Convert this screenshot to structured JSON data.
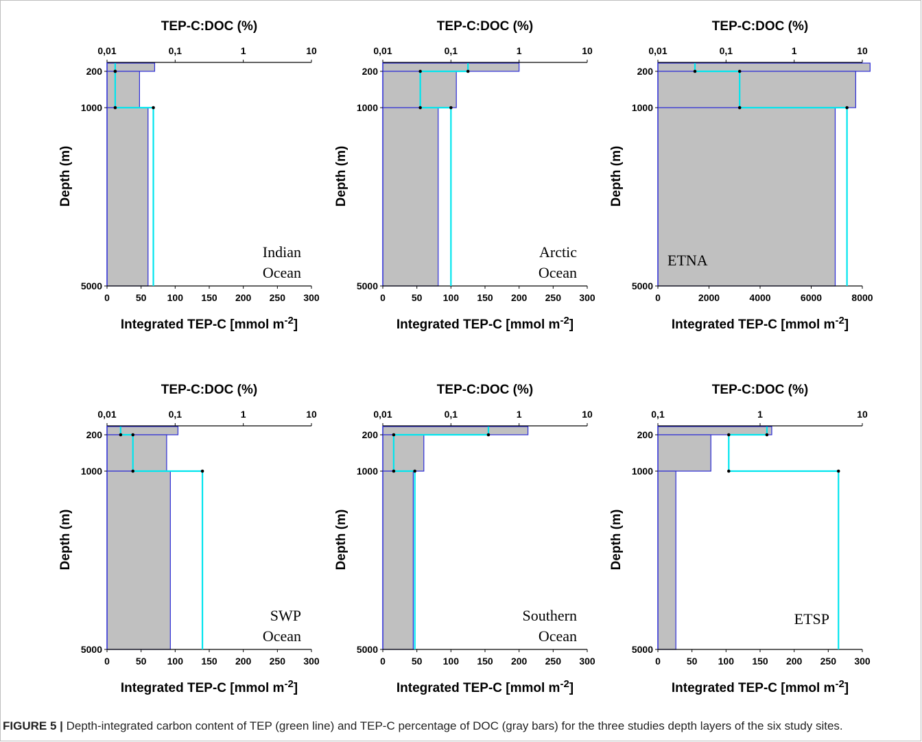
{
  "caption": {
    "label": "FIGURE 5 |",
    "text": " Depth-integrated carbon content of TEP (green line) and TEP-C percentage of DOC (gray bars) for the three studies depth layers of the six study sites."
  },
  "colors": {
    "bar_fill": "#c0c0c0",
    "bar_stroke": "#2b2bd6",
    "line": "#00e5ee",
    "marker": "#000000"
  },
  "chart_data": [
    {
      "type": "bar",
      "site_label": [
        "Indian",
        "Ocean"
      ],
      "top_axis_label": "TEP-C:DOC (%)",
      "top_ticks": [
        "0,01",
        "0,1",
        "1",
        "10"
      ],
      "top_scale": "log",
      "top_range": [
        0.01,
        10
      ],
      "ylabel": "Depth (m)",
      "y_ticks": [
        "200",
        "1000",
        "5000"
      ],
      "xlabel": "Integrated TEP-C [mmol m-2]",
      "x_ticks": [
        "0",
        "50",
        "100",
        "150",
        "200",
        "250",
        "300"
      ],
      "x_range": [
        0,
        300
      ],
      "layers": [
        "0-200",
        "200-1000",
        "1000-5000"
      ],
      "tep_c_doc_pct": [
        0.05,
        0.03,
        0.04
      ],
      "integrated_tep_c": [
        12,
        12,
        68
      ]
    },
    {
      "type": "bar",
      "site_label": [
        "Arctic",
        "Ocean"
      ],
      "top_axis_label": "TEP-C:DOC (%)",
      "top_ticks": [
        "0,01",
        "0,1",
        "1",
        "10"
      ],
      "top_scale": "log",
      "top_range": [
        0.01,
        10
      ],
      "ylabel": "Depth (m)",
      "y_ticks": [
        "200",
        "1000",
        "5000"
      ],
      "xlabel": "Integrated TEP-C [mmol m-2]",
      "x_ticks": [
        "0",
        "50",
        "100",
        "150",
        "200",
        "250",
        "300"
      ],
      "x_range": [
        0,
        300
      ],
      "layers": [
        "0-200",
        "200-1000",
        "1000-5000"
      ],
      "tep_c_doc_pct": [
        1.0,
        0.12,
        0.065
      ],
      "integrated_tep_c": [
        125,
        55,
        100
      ]
    },
    {
      "type": "bar",
      "site_label": [
        "ETNA"
      ],
      "top_axis_label": "TEP-C:DOC (%)",
      "top_ticks": [
        "0,01",
        "0,1",
        "1",
        "10"
      ],
      "top_scale": "log",
      "top_range": [
        0.01,
        10
      ],
      "ylabel": "Depth (m)",
      "y_ticks": [
        "200",
        "1000",
        "5000"
      ],
      "xlabel": "Integrated TEP-C [mmol m-2]",
      "x_ticks": [
        "0",
        "2000",
        "4000",
        "6000",
        "8000"
      ],
      "x_range": [
        0,
        8000
      ],
      "layers": [
        "0-200",
        "200-1000",
        "1000-5000"
      ],
      "tep_c_doc_pct": [
        13,
        8,
        4
      ],
      "integrated_tep_c": [
        1450,
        3200,
        7400
      ]
    },
    {
      "type": "bar",
      "site_label": [
        "SWP",
        "Ocean"
      ],
      "top_axis_label": "TEP-C:DOC (%)",
      "top_ticks": [
        "0,01",
        "0,1",
        "1",
        "10"
      ],
      "top_scale": "log",
      "top_range": [
        0.01,
        10
      ],
      "ylabel": "Depth (m)",
      "y_ticks": [
        "200",
        "1000",
        "5000"
      ],
      "xlabel": "Integrated TEP-C [mmol m-2]",
      "x_ticks": [
        "0",
        "50",
        "100",
        "150",
        "200",
        "250",
        "300"
      ],
      "x_range": [
        0,
        300
      ],
      "layers": [
        "0-200",
        "200-1000",
        "1000-5000"
      ],
      "tep_c_doc_pct": [
        0.11,
        0.075,
        0.085
      ],
      "integrated_tep_c": [
        20,
        38,
        140
      ]
    },
    {
      "type": "bar",
      "site_label": [
        "Southern",
        "Ocean"
      ],
      "top_axis_label": "TEP-C:DOC (%)",
      "top_ticks": [
        "0,01",
        "0,1",
        "1",
        "10"
      ],
      "top_scale": "log",
      "top_range": [
        0.01,
        10
      ],
      "ylabel": "Depth (m)",
      "y_ticks": [
        "200",
        "1000",
        "5000"
      ],
      "xlabel": "Integrated TEP-C [mmol m-2]",
      "x_ticks": [
        "0",
        "50",
        "100",
        "150",
        "200",
        "250",
        "300"
      ],
      "x_range": [
        0,
        300
      ],
      "layers": [
        "0-200",
        "200-1000",
        "1000-5000"
      ],
      "tep_c_doc_pct": [
        1.35,
        0.04,
        0.028
      ],
      "integrated_tep_c": [
        155,
        16,
        47
      ]
    },
    {
      "type": "bar",
      "site_label": [
        "ETSP"
      ],
      "top_axis_label": "TEP-C:DOC (%)",
      "top_ticks": [
        "0,1",
        "1",
        "10"
      ],
      "top_scale": "log",
      "top_range": [
        0.1,
        10
      ],
      "ylabel": "Depth (m)",
      "y_ticks": [
        "200",
        "1000",
        "5000"
      ],
      "xlabel": "Integrated TEP-C [mmol m-2]",
      "x_ticks": [
        "0",
        "50",
        "100",
        "150",
        "200",
        "250",
        "300"
      ],
      "x_range": [
        0,
        300
      ],
      "layers": [
        "0-200",
        "200-1000",
        "1000-5000"
      ],
      "tep_c_doc_pct": [
        1.3,
        0.33,
        0.15
      ],
      "integrated_tep_c": [
        160,
        104,
        265
      ]
    }
  ]
}
